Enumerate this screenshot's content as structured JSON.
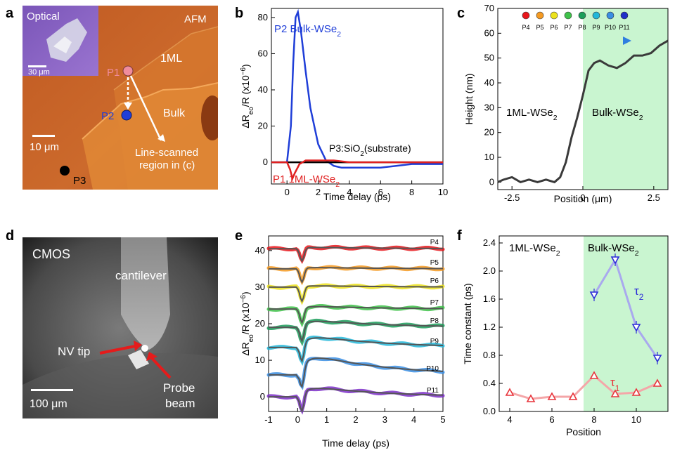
{
  "panels": {
    "a": {
      "label": "a",
      "afm_tag": "AFM",
      "optical_tag": "Optical",
      "optical_scale": "30 μm",
      "afm_scale": "10 μm",
      "region_1ml": "1ML",
      "region_bulk": "Bulk",
      "p1": "P1",
      "p2": "P2",
      "p3": "P3",
      "line_scan_1": "Line-scanned",
      "line_scan_2": "region in (c)"
    },
    "b": {
      "label": "b"
    },
    "c": {
      "label": "c"
    },
    "d": {
      "label": "d",
      "cmos_tag": "CMOS",
      "cantilever": "cantilever",
      "nv_tip": "NV tip",
      "probe_1": "Probe",
      "probe_2": "beam",
      "scale": "100 μm"
    },
    "e": {
      "label": "e"
    },
    "f": {
      "label": "f"
    }
  },
  "colors": {
    "afm_orange": "#c8652a",
    "p1_pink": "#f08c9c",
    "p2_blue": "#1f3ed8",
    "bulk_green": "#c9f5d0",
    "tau1_red": "#e8343b",
    "tau2_blue": "#2a2ad8"
  },
  "chart_data": [
    {
      "id": "b",
      "type": "line",
      "xlabel": "Time delay (ps)",
      "ylabel": "ΔReo/R (x10⁻⁶)",
      "xlim": [
        -1,
        10
      ],
      "ylim": [
        -12,
        85
      ],
      "xticks": [
        0,
        2,
        4,
        6,
        8,
        10
      ],
      "yticks": [
        0,
        20,
        40,
        60,
        80
      ],
      "series": [
        {
          "name": "P2 Bulk-WSe2",
          "color": "#1f3ed8",
          "x": [
            -1,
            0,
            0.25,
            0.4,
            0.55,
            0.7,
            0.9,
            1.2,
            1.5,
            2,
            2.5,
            3,
            3.5,
            4,
            5,
            6,
            7,
            8,
            9,
            10
          ],
          "y": [
            0,
            0,
            20,
            55,
            80,
            83,
            72,
            50,
            30,
            10,
            1,
            -2,
            -3,
            -3,
            -3,
            -3,
            -2,
            -1,
            -1,
            -1
          ]
        },
        {
          "name": "P3:SiO2(substrate)",
          "color": "#000000",
          "x": [
            -1,
            0,
            2,
            4,
            6,
            8,
            10
          ],
          "y": [
            0,
            0,
            0,
            0,
            0,
            0,
            0
          ]
        },
        {
          "name": "P1 1ML-WSe2",
          "color": "#e02020",
          "x": [
            -1,
            0,
            0.2,
            0.35,
            0.5,
            0.8,
            1.2,
            2,
            3,
            4,
            6,
            8,
            10
          ],
          "y": [
            0,
            0,
            -4,
            -9,
            -6,
            -1,
            1,
            1,
            1,
            0,
            0,
            0,
            0
          ]
        }
      ]
    },
    {
      "id": "c",
      "type": "line",
      "xlabel": "Position (μm)",
      "ylabel": "Height (nm)",
      "xlim": [
        -3,
        3
      ],
      "ylim": [
        -3,
        70
      ],
      "xticks": [
        -2.5,
        0,
        2.5
      ],
      "yticks": [
        0,
        10,
        20,
        30,
        40,
        50,
        60,
        70
      ],
      "regions": [
        "1ML-WSe2",
        "Bulk-WSe2"
      ],
      "markers": [
        "P4",
        "P5",
        "P6",
        "P7",
        "P8",
        "P9",
        "P10",
        "P11"
      ],
      "marker_colors": [
        "#e8161b",
        "#f59a22",
        "#ece21c",
        "#3fc24a",
        "#1b9e5a",
        "#23b7d9",
        "#3a8ee3",
        "#1f2fc8"
      ],
      "series": [
        {
          "name": "Height",
          "color": "#3a3a3a",
          "x": [
            -3,
            -2.8,
            -2.5,
            -2.2,
            -1.9,
            -1.6,
            -1.3,
            -1.0,
            -0.8,
            -0.6,
            -0.4,
            -0.2,
            0,
            0.2,
            0.4,
            0.6,
            0.9,
            1.2,
            1.5,
            1.8,
            2.1,
            2.4,
            2.7,
            3
          ],
          "y": [
            0,
            1,
            2,
            0,
            1,
            0,
            1,
            0,
            2,
            8,
            18,
            26,
            35,
            45,
            48,
            49,
            47,
            46,
            48,
            51,
            51,
            52,
            55,
            57
          ]
        }
      ]
    },
    {
      "id": "e",
      "type": "line",
      "xlabel": "Time delay (ps)",
      "ylabel": "ΔReo/R (x10⁻⁶)",
      "xlim": [
        -1,
        5
      ],
      "ylim": [
        -4,
        44
      ],
      "xticks": [
        -1,
        0,
        1,
        2,
        3,
        4,
        5
      ],
      "yticks": [
        0,
        10,
        20,
        30,
        40
      ],
      "traces": [
        {
          "name": "P4",
          "offset": 40.5,
          "color": "#e8161b",
          "dip": -3.5,
          "rise": 0.5
        },
        {
          "name": "P5",
          "offset": 35.0,
          "color": "#f59a22",
          "dip": -3.8,
          "rise": 0.5
        },
        {
          "name": "P6",
          "offset": 30.0,
          "color": "#ece21c",
          "dip": -4.0,
          "rise": 0.5
        },
        {
          "name": "P7",
          "offset": 24.0,
          "color": "#3fc24a",
          "dip": -4.0,
          "rise": 1.0
        },
        {
          "name": "P8",
          "offset": 19.0,
          "color": "#1b9e5a",
          "dip": -4.5,
          "rise": 2.5
        },
        {
          "name": "P9",
          "offset": 13.5,
          "color": "#23b7d9",
          "dip": -5.0,
          "rise": 4.0
        },
        {
          "name": "P10",
          "offset": 6.0,
          "color": "#3a8ee3",
          "dip": -5.5,
          "rise": 7.0
        },
        {
          "name": "P11",
          "offset": 0.0,
          "color": "#7d2fc8",
          "dip": -5.0,
          "rise": 3.5
        }
      ]
    },
    {
      "id": "f",
      "type": "scatter",
      "xlabel": "Position",
      "ylabel": "Time constant (ps)",
      "xlim": [
        3.5,
        11.5
      ],
      "ylim": [
        0,
        2.5
      ],
      "xticks": [
        4,
        6,
        8,
        10
      ],
      "yticks": [
        0.0,
        0.4,
        0.8,
        1.2,
        1.6,
        2.0,
        2.4
      ],
      "regions": [
        "1ML-WSe2",
        "Bulk-WSe2"
      ],
      "series": [
        {
          "name": "τ1",
          "color": "#e8343b",
          "x": [
            4,
            5,
            6,
            7,
            8,
            9,
            10,
            11
          ],
          "y": [
            0.27,
            0.18,
            0.21,
            0.21,
            0.51,
            0.25,
            0.27,
            0.4
          ]
        },
        {
          "name": "τ2",
          "color": "#2a2ad8",
          "x": [
            8,
            9,
            10,
            11
          ],
          "y": [
            1.66,
            2.16,
            1.2,
            0.76
          ]
        }
      ]
    }
  ]
}
